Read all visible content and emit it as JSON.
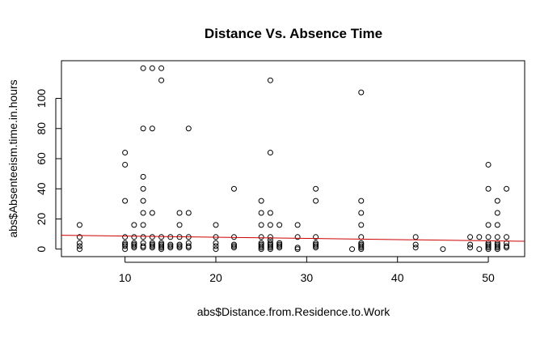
{
  "chart_data": {
    "type": "scatter",
    "title": "Distance Vs. Absence Time",
    "xlabel": "abs$Distance.from.Residence.to.Work",
    "ylabel": "abs$Absenteeism.time.in.hours",
    "xlim": [
      3,
      54
    ],
    "ylim": [
      -5,
      125
    ],
    "x_ticks": [
      10,
      20,
      30,
      40,
      50
    ],
    "y_ticks": [
      0,
      20,
      40,
      60,
      80,
      100
    ],
    "grid": false,
    "legend": "none",
    "point_color": "#000000",
    "line_color": "#cc0000",
    "points": [
      {
        "x": 5,
        "y": 0
      },
      {
        "x": 5,
        "y": 2
      },
      {
        "x": 5,
        "y": 4
      },
      {
        "x": 5,
        "y": 8
      },
      {
        "x": 5,
        "y": 16
      },
      {
        "x": 10,
        "y": 0
      },
      {
        "x": 10,
        "y": 2
      },
      {
        "x": 10,
        "y": 3
      },
      {
        "x": 10,
        "y": 4
      },
      {
        "x": 10,
        "y": 8
      },
      {
        "x": 10,
        "y": 32
      },
      {
        "x": 10,
        "y": 56
      },
      {
        "x": 10,
        "y": 64
      },
      {
        "x": 11,
        "y": 1
      },
      {
        "x": 11,
        "y": 2
      },
      {
        "x": 11,
        "y": 3
      },
      {
        "x": 11,
        "y": 4
      },
      {
        "x": 11,
        "y": 8
      },
      {
        "x": 11,
        "y": 16
      },
      {
        "x": 12,
        "y": 1
      },
      {
        "x": 12,
        "y": 2
      },
      {
        "x": 12,
        "y": 4
      },
      {
        "x": 12,
        "y": 8
      },
      {
        "x": 12,
        "y": 16
      },
      {
        "x": 12,
        "y": 24
      },
      {
        "x": 12,
        "y": 32
      },
      {
        "x": 12,
        "y": 40
      },
      {
        "x": 12,
        "y": 48
      },
      {
        "x": 12,
        "y": 80
      },
      {
        "x": 12,
        "y": 120
      },
      {
        "x": 13,
        "y": 1
      },
      {
        "x": 13,
        "y": 2
      },
      {
        "x": 13,
        "y": 3
      },
      {
        "x": 13,
        "y": 4
      },
      {
        "x": 13,
        "y": 8
      },
      {
        "x": 13,
        "y": 24
      },
      {
        "x": 13,
        "y": 80
      },
      {
        "x": 13,
        "y": 120
      },
      {
        "x": 14,
        "y": 0
      },
      {
        "x": 14,
        "y": 1
      },
      {
        "x": 14,
        "y": 2
      },
      {
        "x": 14,
        "y": 3
      },
      {
        "x": 14,
        "y": 4
      },
      {
        "x": 14,
        "y": 8
      },
      {
        "x": 14,
        "y": 112
      },
      {
        "x": 14,
        "y": 120
      },
      {
        "x": 15,
        "y": 1
      },
      {
        "x": 15,
        "y": 2
      },
      {
        "x": 15,
        "y": 3
      },
      {
        "x": 15,
        "y": 8
      },
      {
        "x": 16,
        "y": 1
      },
      {
        "x": 16,
        "y": 2
      },
      {
        "x": 16,
        "y": 3
      },
      {
        "x": 16,
        "y": 8
      },
      {
        "x": 16,
        "y": 16
      },
      {
        "x": 16,
        "y": 24
      },
      {
        "x": 17,
        "y": 1
      },
      {
        "x": 17,
        "y": 2
      },
      {
        "x": 17,
        "y": 4
      },
      {
        "x": 17,
        "y": 8
      },
      {
        "x": 17,
        "y": 24
      },
      {
        "x": 17,
        "y": 80
      },
      {
        "x": 20,
        "y": 0
      },
      {
        "x": 20,
        "y": 2
      },
      {
        "x": 20,
        "y": 4
      },
      {
        "x": 20,
        "y": 8
      },
      {
        "x": 20,
        "y": 16
      },
      {
        "x": 22,
        "y": 1
      },
      {
        "x": 22,
        "y": 2
      },
      {
        "x": 22,
        "y": 3
      },
      {
        "x": 22,
        "y": 8
      },
      {
        "x": 22,
        "y": 40
      },
      {
        "x": 25,
        "y": 0
      },
      {
        "x": 25,
        "y": 1
      },
      {
        "x": 25,
        "y": 2
      },
      {
        "x": 25,
        "y": 3
      },
      {
        "x": 25,
        "y": 4
      },
      {
        "x": 25,
        "y": 8
      },
      {
        "x": 25,
        "y": 16
      },
      {
        "x": 25,
        "y": 24
      },
      {
        "x": 25,
        "y": 32
      },
      {
        "x": 26,
        "y": 0
      },
      {
        "x": 26,
        "y": 1
      },
      {
        "x": 26,
        "y": 2
      },
      {
        "x": 26,
        "y": 3
      },
      {
        "x": 26,
        "y": 4
      },
      {
        "x": 26,
        "y": 6
      },
      {
        "x": 26,
        "y": 8
      },
      {
        "x": 26,
        "y": 16
      },
      {
        "x": 26,
        "y": 24
      },
      {
        "x": 26,
        "y": 64
      },
      {
        "x": 26,
        "y": 112
      },
      {
        "x": 27,
        "y": 1
      },
      {
        "x": 27,
        "y": 2
      },
      {
        "x": 27,
        "y": 3
      },
      {
        "x": 27,
        "y": 4
      },
      {
        "x": 27,
        "y": 16
      },
      {
        "x": 29,
        "y": 0
      },
      {
        "x": 29,
        "y": 1
      },
      {
        "x": 29,
        "y": 8
      },
      {
        "x": 29,
        "y": 16
      },
      {
        "x": 31,
        "y": 1
      },
      {
        "x": 31,
        "y": 2
      },
      {
        "x": 31,
        "y": 3
      },
      {
        "x": 31,
        "y": 4
      },
      {
        "x": 31,
        "y": 8
      },
      {
        "x": 31,
        "y": 32
      },
      {
        "x": 31,
        "y": 40
      },
      {
        "x": 35,
        "y": 0
      },
      {
        "x": 36,
        "y": 0
      },
      {
        "x": 36,
        "y": 1
      },
      {
        "x": 36,
        "y": 2
      },
      {
        "x": 36,
        "y": 3
      },
      {
        "x": 36,
        "y": 4
      },
      {
        "x": 36,
        "y": 8
      },
      {
        "x": 36,
        "y": 16
      },
      {
        "x": 36,
        "y": 24
      },
      {
        "x": 36,
        "y": 32
      },
      {
        "x": 36,
        "y": 104
      },
      {
        "x": 42,
        "y": 1
      },
      {
        "x": 42,
        "y": 3
      },
      {
        "x": 42,
        "y": 8
      },
      {
        "x": 45,
        "y": 0
      },
      {
        "x": 48,
        "y": 1
      },
      {
        "x": 48,
        "y": 3
      },
      {
        "x": 48,
        "y": 8
      },
      {
        "x": 49,
        "y": 0
      },
      {
        "x": 49,
        "y": 8
      },
      {
        "x": 50,
        "y": 0
      },
      {
        "x": 50,
        "y": 1
      },
      {
        "x": 50,
        "y": 2
      },
      {
        "x": 50,
        "y": 3
      },
      {
        "x": 50,
        "y": 4
      },
      {
        "x": 50,
        "y": 8
      },
      {
        "x": 50,
        "y": 16
      },
      {
        "x": 50,
        "y": 40
      },
      {
        "x": 50,
        "y": 56
      },
      {
        "x": 51,
        "y": 0
      },
      {
        "x": 51,
        "y": 1
      },
      {
        "x": 51,
        "y": 2
      },
      {
        "x": 51,
        "y": 3
      },
      {
        "x": 51,
        "y": 4
      },
      {
        "x": 51,
        "y": 8
      },
      {
        "x": 51,
        "y": 16
      },
      {
        "x": 51,
        "y": 24
      },
      {
        "x": 51,
        "y": 32
      },
      {
        "x": 52,
        "y": 1
      },
      {
        "x": 52,
        "y": 2
      },
      {
        "x": 52,
        "y": 4
      },
      {
        "x": 52,
        "y": 8
      },
      {
        "x": 52,
        "y": 40
      }
    ],
    "trend_line": [
      {
        "x": 3,
        "y": 9.2
      },
      {
        "x": 54,
        "y": 5.2
      }
    ]
  }
}
